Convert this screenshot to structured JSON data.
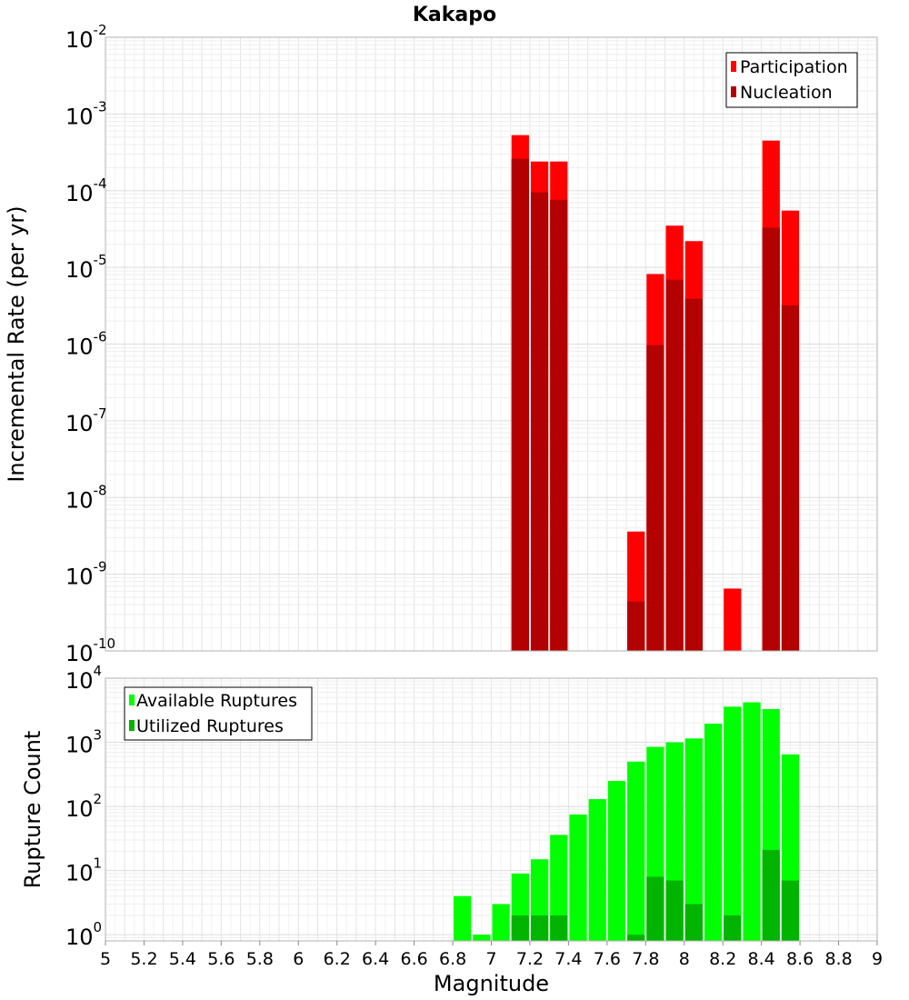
{
  "chart_data": [
    {
      "type": "bar",
      "title": "Kakapo",
      "ylabel": "Incremental Rate (per yr)",
      "xlabel": "",
      "yscale": "log",
      "ylim": [
        1e-10,
        0.01
      ],
      "xlim": [
        5,
        9
      ],
      "bar_width": 0.1,
      "y_tick_base": "10",
      "y_tick_exponents": [
        "-10",
        "-9",
        "-8",
        "-7",
        "-6",
        "-5",
        "-4",
        "-3",
        "-2"
      ],
      "grid": true,
      "legend_position": "top-right",
      "series": [
        {
          "name": "Participation",
          "color": "#ff0000",
          "x": [
            7.15,
            7.25,
            7.35,
            7.75,
            7.85,
            7.95,
            8.05,
            8.25,
            8.45,
            8.55
          ],
          "values": [
            0.00053,
            0.00024,
            0.00024,
            3.6e-09,
            8.2e-06,
            3.5e-05,
            2.2e-05,
            6.5e-10,
            0.00045,
            5.5e-05
          ]
        },
        {
          "name": "Nucleation",
          "color": "#b30000",
          "x": [
            7.15,
            7.25,
            7.35,
            7.75,
            7.85,
            7.95,
            8.05,
            8.45,
            8.55
          ],
          "values": [
            0.00026,
            9.5e-05,
            7.6e-05,
            4.4e-10,
            9.7e-07,
            6.9e-06,
            3.9e-06,
            3.3e-05,
            3.2e-06
          ]
        }
      ]
    },
    {
      "type": "bar",
      "title": "",
      "ylabel": "Rupture Count",
      "xlabel": "Magnitude",
      "yscale": "log",
      "ylim": [
        0.8,
        10000.0
      ],
      "xlim": [
        5,
        9
      ],
      "bar_width": 0.1,
      "y_tick_base": "10",
      "y_tick_exponents": [
        "0",
        "1",
        "2",
        "3",
        "4"
      ],
      "x_ticks": [
        "5",
        "5.2",
        "5.4",
        "5.6",
        "5.8",
        "6",
        "6.2",
        "6.4",
        "6.6",
        "6.8",
        "7",
        "7.2",
        "7.4",
        "7.6",
        "7.8",
        "8",
        "8.2",
        "8.4",
        "8.6",
        "8.8",
        "9"
      ],
      "grid": true,
      "legend_position": "top-left",
      "series": [
        {
          "name": "Available Ruptures",
          "color": "#00ff00",
          "x": [
            6.85,
            6.95,
            7.05,
            7.15,
            7.25,
            7.35,
            7.45,
            7.55,
            7.65,
            7.75,
            7.85,
            7.95,
            8.05,
            8.15,
            8.25,
            8.35,
            8.45,
            8.55
          ],
          "values": [
            4,
            1,
            3,
            9,
            15,
            36,
            75,
            130,
            250,
            500,
            850,
            1000,
            1150,
            1950,
            3600,
            4200,
            3300,
            650
          ]
        },
        {
          "name": "Utilized Ruptures",
          "color": "#00b400",
          "x": [
            7.15,
            7.25,
            7.35,
            7.75,
            7.85,
            7.95,
            8.05,
            8.25,
            8.45,
            8.55
          ],
          "values": [
            2,
            2,
            2,
            1,
            8,
            7,
            3,
            2,
            21,
            7
          ]
        }
      ]
    }
  ]
}
